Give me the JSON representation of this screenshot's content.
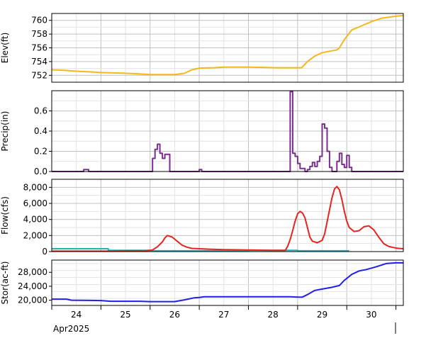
{
  "chart_data": [
    {
      "type": "line",
      "ylabel": "Elev(ft)",
      "ylim": [
        751,
        761
      ],
      "yticks": [
        752,
        754,
        756,
        758,
        760
      ],
      "ytick_labels": [
        "752",
        "754",
        "756",
        "758",
        "760"
      ],
      "grid": true,
      "series": [
        {
          "color": "#f5b71b",
          "step": false,
          "points": [
            [
              24.0,
              752.8
            ],
            [
              24.2,
              752.75
            ],
            [
              24.5,
              752.6
            ],
            [
              24.8,
              752.5
            ],
            [
              25.0,
              752.4
            ],
            [
              25.5,
              752.3
            ],
            [
              25.8,
              752.2
            ],
            [
              26.0,
              752.1
            ],
            [
              26.5,
              752.1
            ],
            [
              26.7,
              752.3
            ],
            [
              26.85,
              752.8
            ],
            [
              27.0,
              753.05
            ],
            [
              27.3,
              753.1
            ],
            [
              27.5,
              753.2
            ],
            [
              28.0,
              753.2
            ],
            [
              28.3,
              753.15
            ],
            [
              28.6,
              753.1
            ],
            [
              29.0,
              753.1
            ],
            [
              29.08,
              753.1
            ],
            [
              29.2,
              754.0
            ],
            [
              29.35,
              754.8
            ],
            [
              29.5,
              755.3
            ],
            [
              29.65,
              755.5
            ],
            [
              29.8,
              755.7
            ],
            [
              29.85,
              756.0
            ],
            [
              29.95,
              757.2
            ],
            [
              30.1,
              758.6
            ],
            [
              30.3,
              759.2
            ],
            [
              30.5,
              759.8
            ],
            [
              30.7,
              760.3
            ],
            [
              31.0,
              760.6
            ],
            [
              31.15,
              760.7
            ]
          ]
        }
      ]
    },
    {
      "type": "line",
      "ylabel": "Precip(in)",
      "ylim": [
        0,
        0.8
      ],
      "yticks": [
        0,
        0.2,
        0.4,
        0.6
      ],
      "ytick_labels": [
        "0.0",
        "0.2",
        "0.4",
        "0.6"
      ],
      "grid": true,
      "series": [
        {
          "color": "#7a2f8f",
          "step": true,
          "points": [
            [
              24.0,
              0
            ],
            [
              24.65,
              0
            ],
            [
              24.65,
              0.02
            ],
            [
              24.75,
              0.02
            ],
            [
              24.75,
              0
            ],
            [
              26.05,
              0
            ],
            [
              26.05,
              0.13
            ],
            [
              26.1,
              0.13
            ],
            [
              26.1,
              0.22
            ],
            [
              26.15,
              0.22
            ],
            [
              26.15,
              0.27
            ],
            [
              26.2,
              0.27
            ],
            [
              26.2,
              0.18
            ],
            [
              26.25,
              0.18
            ],
            [
              26.25,
              0.13
            ],
            [
              26.3,
              0.13
            ],
            [
              26.3,
              0.17
            ],
            [
              26.4,
              0.17
            ],
            [
              26.4,
              0
            ],
            [
              27.0,
              0
            ],
            [
              27.0,
              0.02
            ],
            [
              27.05,
              0.02
            ],
            [
              27.05,
              0
            ],
            [
              28.85,
              0
            ],
            [
              28.85,
              0.79
            ],
            [
              28.9,
              0.79
            ],
            [
              28.9,
              0.18
            ],
            [
              28.95,
              0.18
            ],
            [
              28.95,
              0.15
            ],
            [
              29.0,
              0.15
            ],
            [
              29.0,
              0.08
            ],
            [
              29.05,
              0.08
            ],
            [
              29.05,
              0.03
            ],
            [
              29.15,
              0.03
            ],
            [
              29.15,
              0
            ],
            [
              29.2,
              0
            ],
            [
              29.2,
              0.02
            ],
            [
              29.25,
              0.02
            ],
            [
              29.25,
              0.05
            ],
            [
              29.3,
              0.05
            ],
            [
              29.3,
              0.09
            ],
            [
              29.35,
              0.09
            ],
            [
              29.35,
              0.05
            ],
            [
              29.4,
              0.05
            ],
            [
              29.4,
              0.1
            ],
            [
              29.45,
              0.1
            ],
            [
              29.45,
              0.15
            ],
            [
              29.5,
              0.15
            ],
            [
              29.5,
              0.47
            ],
            [
              29.55,
              0.47
            ],
            [
              29.55,
              0.43
            ],
            [
              29.6,
              0.43
            ],
            [
              29.6,
              0.2
            ],
            [
              29.65,
              0.2
            ],
            [
              29.65,
              0.04
            ],
            [
              29.7,
              0.04
            ],
            [
              29.7,
              0
            ],
            [
              29.8,
              0
            ],
            [
              29.8,
              0.1
            ],
            [
              29.85,
              0.1
            ],
            [
              29.85,
              0.18
            ],
            [
              29.9,
              0.18
            ],
            [
              29.9,
              0.07
            ],
            [
              29.95,
              0.07
            ],
            [
              29.95,
              0.04
            ],
            [
              30.0,
              0.04
            ],
            [
              30.0,
              0.16
            ],
            [
              30.05,
              0.16
            ],
            [
              30.05,
              0.04
            ],
            [
              30.1,
              0.04
            ],
            [
              30.1,
              0
            ],
            [
              31.15,
              0
            ]
          ]
        }
      ]
    },
    {
      "type": "line",
      "ylabel": "Flow(cfs)",
      "ylim": [
        0,
        9000
      ],
      "yticks": [
        0,
        2000,
        4000,
        6000,
        8000
      ],
      "ytick_labels": [
        "0",
        "2,000",
        "4,000",
        "6,000",
        "8,000"
      ],
      "grid": true,
      "series": [
        {
          "color": "#20b5b0",
          "step": true,
          "points": [
            [
              24.0,
              350
            ],
            [
              25.15,
              350
            ],
            [
              25.15,
              150
            ],
            [
              26.0,
              150
            ],
            [
              26.0,
              100
            ],
            [
              27.0,
              100
            ],
            [
              27.0,
              100
            ],
            [
              28.0,
              100
            ],
            [
              28.0,
              150
            ],
            [
              29.0,
              150
            ],
            [
              29.0,
              100
            ],
            [
              30.05,
              100
            ]
          ]
        },
        {
          "color": "#e8231f",
          "step": true,
          "points": [
            [
              24.0,
              50
            ],
            [
              25.2,
              50
            ],
            [
              25.5,
              100
            ],
            [
              25.9,
              100
            ],
            [
              26.05,
              200
            ],
            [
              26.15,
              600
            ],
            [
              26.25,
              1200
            ],
            [
              26.3,
              1700
            ],
            [
              26.35,
              2000
            ],
            [
              26.45,
              1800
            ],
            [
              26.55,
              1300
            ],
            [
              26.65,
              800
            ],
            [
              26.75,
              550
            ],
            [
              26.85,
              400
            ],
            [
              27.0,
              350
            ],
            [
              27.2,
              300
            ],
            [
              27.5,
              250
            ],
            [
              28.0,
              200
            ],
            [
              28.5,
              150
            ],
            [
              28.75,
              150
            ],
            [
              28.8,
              700
            ],
            [
              28.85,
              1500
            ],
            [
              28.9,
              2600
            ],
            [
              28.95,
              3800
            ],
            [
              29.0,
              4700
            ],
            [
              29.05,
              5000
            ],
            [
              29.1,
              4800
            ],
            [
              29.15,
              4200
            ],
            [
              29.2,
              3000
            ],
            [
              29.25,
              1800
            ],
            [
              29.3,
              1300
            ],
            [
              29.4,
              1100
            ],
            [
              29.5,
              1400
            ],
            [
              29.55,
              2200
            ],
            [
              29.6,
              3700
            ],
            [
              29.65,
              5200
            ],
            [
              29.7,
              6700
            ],
            [
              29.75,
              7800
            ],
            [
              29.8,
              8100
            ],
            [
              29.85,
              7700
            ],
            [
              29.9,
              6500
            ],
            [
              29.95,
              5000
            ],
            [
              30.0,
              3800
            ],
            [
              30.05,
              3000
            ],
            [
              30.15,
              2500
            ],
            [
              30.25,
              2600
            ],
            [
              30.35,
              3100
            ],
            [
              30.45,
              3200
            ],
            [
              30.55,
              2700
            ],
            [
              30.65,
              1800
            ],
            [
              30.75,
              1000
            ],
            [
              30.85,
              650
            ],
            [
              30.95,
              500
            ],
            [
              31.05,
              400
            ],
            [
              31.15,
              350
            ]
          ]
        }
      ]
    },
    {
      "type": "line",
      "ylabel": "Stor(ac-ft)",
      "ylim": [
        18500,
        31500
      ],
      "yticks": [
        20000,
        24000,
        28000
      ],
      "ytick_labels": [
        "20,000",
        "24,000",
        "28,000"
      ],
      "grid": true,
      "xlim": [
        24.0,
        31.15
      ],
      "xticks": [
        24,
        25,
        26,
        27,
        28,
        29,
        30,
        31
      ],
      "xtick_labels": [
        "24",
        "25",
        "26",
        "27",
        "28",
        "29",
        "30"
      ],
      "xlabel_month": "Apr2025",
      "series": [
        {
          "color": "#1f1ff0",
          "step": false,
          "points": [
            [
              24.0,
              20300
            ],
            [
              24.3,
              20300
            ],
            [
              24.4,
              20000
            ],
            [
              25.0,
              19900
            ],
            [
              25.2,
              19700
            ],
            [
              25.8,
              19700
            ],
            [
              26.0,
              19600
            ],
            [
              26.5,
              19600
            ],
            [
              26.7,
              20100
            ],
            [
              26.9,
              20700
            ],
            [
              27.0,
              20800
            ],
            [
              27.1,
              21000
            ],
            [
              27.5,
              21000
            ],
            [
              28.0,
              21000
            ],
            [
              28.5,
              21000
            ],
            [
              28.85,
              21000
            ],
            [
              29.0,
              20900
            ],
            [
              29.1,
              20900
            ],
            [
              29.2,
              21600
            ],
            [
              29.35,
              22800
            ],
            [
              29.5,
              23200
            ],
            [
              29.7,
              23700
            ],
            [
              29.85,
              24200
            ],
            [
              29.95,
              25700
            ],
            [
              30.1,
              27400
            ],
            [
              30.25,
              28400
            ],
            [
              30.4,
              28800
            ],
            [
              30.6,
              29600
            ],
            [
              30.8,
              30500
            ],
            [
              31.0,
              30700
            ],
            [
              31.15,
              30700
            ]
          ]
        }
      ]
    }
  ]
}
